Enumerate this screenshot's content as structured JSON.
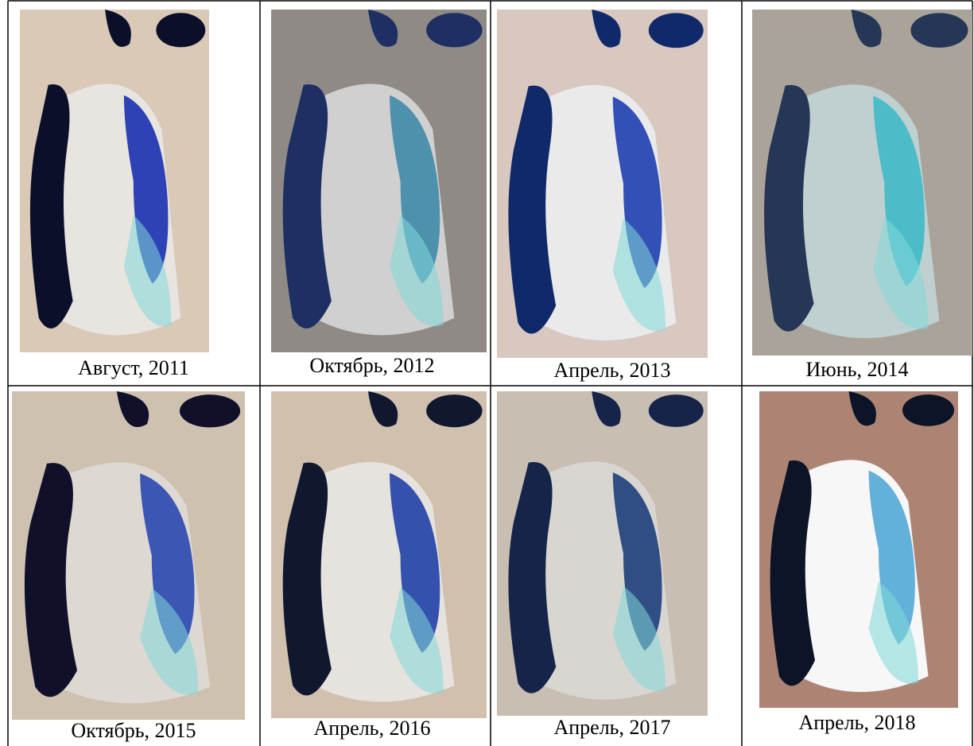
{
  "figure": {
    "cells": [
      {
        "caption": "Август, 2011"
      },
      {
        "caption": "Октябрь, 2012"
      },
      {
        "caption": "Апрель, 2013"
      },
      {
        "caption": "Июнь, 2014"
      },
      {
        "caption": "Октябрь, 2015"
      },
      {
        "caption": "Апрель, 2016"
      },
      {
        "caption": "Апрель, 2017"
      },
      {
        "caption": "Апрель, 2018"
      }
    ]
  }
}
